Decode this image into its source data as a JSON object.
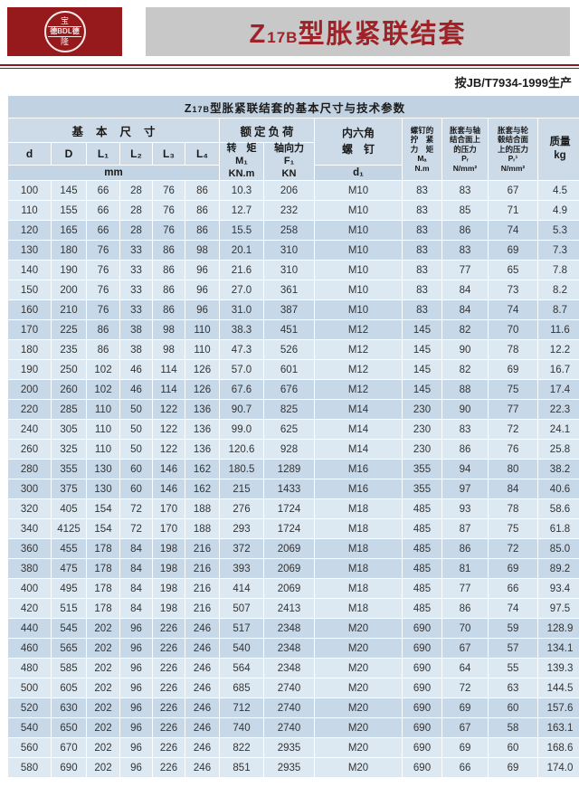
{
  "logo": {
    "line1": "宝",
    "line2": "德BDL德",
    "line3": "隆"
  },
  "banner": {
    "title_prefix": "Z",
    "title_sub": "17B",
    "title_suffix": "型胀紧联结套"
  },
  "standard_note": "按JB/T7934-1999生产",
  "colors": {
    "brand_red": "#96191c",
    "banner_gray": "#c8c8c8",
    "banner_text_red": "#9e2227",
    "table_title_bg": "#c1d2e2",
    "header_bg": "#cddbe9",
    "row_light": "#dde9f2",
    "row_dark": "#c7d8e8"
  },
  "table": {
    "title": {
      "prefix": "Z",
      "sub": "17B",
      "suffix": "型胀紧联结套的基本尺寸与技术参数"
    },
    "headers": {
      "basic_dims": "基本尺寸",
      "rated_load": "额定负荷",
      "hex_screw": "内六角\n螺　钉",
      "d": "d",
      "D": "D",
      "L1": "L₁",
      "L2": "L₂",
      "L3": "L₃",
      "L4": "L₄",
      "mm": "mm",
      "torque": "转　矩\nM₁\nKN.m",
      "axial_force": "轴向力\nF₁\nKN",
      "d1": "d₁",
      "tightening_torque": "螺钉的\n拧　紧\n力　矩\nMₐ\nN.m",
      "shaft_pressure": "胀套与轴\n结合面上\n的压力\nPᵣ\nN/mm²",
      "hub_pressure": "胀套与轮\n毂结合面\n上的压力\nPᵣ¹\nN/mm²",
      "mass": "质量\nkg"
    },
    "rows": [
      [
        "100",
        "145",
        "66",
        "28",
        "76",
        "86",
        "10.3",
        "206",
        "M10",
        "83",
        "83",
        "67",
        "4.5"
      ],
      [
        "110",
        "155",
        "66",
        "28",
        "76",
        "86",
        "12.7",
        "232",
        "M10",
        "83",
        "85",
        "71",
        "4.9"
      ],
      [
        "120",
        "165",
        "66",
        "28",
        "76",
        "86",
        "15.5",
        "258",
        "M10",
        "83",
        "86",
        "74",
        "5.3"
      ],
      [
        "130",
        "180",
        "76",
        "33",
        "86",
        "98",
        "20.1",
        "310",
        "M10",
        "83",
        "83",
        "69",
        "7.3"
      ],
      [
        "140",
        "190",
        "76",
        "33",
        "86",
        "96",
        "21.6",
        "310",
        "M10",
        "83",
        "77",
        "65",
        "7.8"
      ],
      [
        "150",
        "200",
        "76",
        "33",
        "86",
        "96",
        "27.0",
        "361",
        "M10",
        "83",
        "84",
        "73",
        "8.2"
      ],
      [
        "160",
        "210",
        "76",
        "33",
        "86",
        "96",
        "31.0",
        "387",
        "M10",
        "83",
        "84",
        "74",
        "8.7"
      ],
      [
        "170",
        "225",
        "86",
        "38",
        "98",
        "110",
        "38.3",
        "451",
        "M12",
        "145",
        "82",
        "70",
        "11.6"
      ],
      [
        "180",
        "235",
        "86",
        "38",
        "98",
        "110",
        "47.3",
        "526",
        "M12",
        "145",
        "90",
        "78",
        "12.2"
      ],
      [
        "190",
        "250",
        "102",
        "46",
        "114",
        "126",
        "57.0",
        "601",
        "M12",
        "145",
        "82",
        "69",
        "16.7"
      ],
      [
        "200",
        "260",
        "102",
        "46",
        "114",
        "126",
        "67.6",
        "676",
        "M12",
        "145",
        "88",
        "75",
        "17.4"
      ],
      [
        "220",
        "285",
        "110",
        "50",
        "122",
        "136",
        "90.7",
        "825",
        "M14",
        "230",
        "90",
        "77",
        "22.3"
      ],
      [
        "240",
        "305",
        "110",
        "50",
        "122",
        "136",
        "99.0",
        "625",
        "M14",
        "230",
        "83",
        "72",
        "24.1"
      ],
      [
        "260",
        "325",
        "110",
        "50",
        "122",
        "136",
        "120.6",
        "928",
        "M14",
        "230",
        "86",
        "76",
        "25.8"
      ],
      [
        "280",
        "355",
        "130",
        "60",
        "146",
        "162",
        "180.5",
        "1289",
        "M16",
        "355",
        "94",
        "80",
        "38.2"
      ],
      [
        "300",
        "375",
        "130",
        "60",
        "146",
        "162",
        "215",
        "1433",
        "M16",
        "355",
        "97",
        "84",
        "40.6"
      ],
      [
        "320",
        "405",
        "154",
        "72",
        "170",
        "188",
        "276",
        "1724",
        "M18",
        "485",
        "93",
        "78",
        "58.6"
      ],
      [
        "340",
        "4125",
        "154",
        "72",
        "170",
        "188",
        "293",
        "1724",
        "M18",
        "485",
        "87",
        "75",
        "61.8"
      ],
      [
        "360",
        "455",
        "178",
        "84",
        "198",
        "216",
        "372",
        "2069",
        "M18",
        "485",
        "86",
        "72",
        "85.0"
      ],
      [
        "380",
        "475",
        "178",
        "84",
        "198",
        "216",
        "393",
        "2069",
        "M18",
        "485",
        "81",
        "69",
        "89.2"
      ],
      [
        "400",
        "495",
        "178",
        "84",
        "198",
        "216",
        "414",
        "2069",
        "M18",
        "485",
        "77",
        "66",
        "93.4"
      ],
      [
        "420",
        "515",
        "178",
        "84",
        "198",
        "216",
        "507",
        "2413",
        "M18",
        "485",
        "86",
        "74",
        "97.5"
      ],
      [
        "440",
        "545",
        "202",
        "96",
        "226",
        "246",
        "517",
        "2348",
        "M20",
        "690",
        "70",
        "59",
        "128.9"
      ],
      [
        "460",
        "565",
        "202",
        "96",
        "226",
        "246",
        "540",
        "2348",
        "M20",
        "690",
        "67",
        "57",
        "134.1"
      ],
      [
        "480",
        "585",
        "202",
        "96",
        "226",
        "246",
        "564",
        "2348",
        "M20",
        "690",
        "64",
        "55",
        "139.3"
      ],
      [
        "500",
        "605",
        "202",
        "96",
        "226",
        "246",
        "685",
        "2740",
        "M20",
        "690",
        "72",
        "63",
        "144.5"
      ],
      [
        "520",
        "630",
        "202",
        "96",
        "226",
        "246",
        "712",
        "2740",
        "M20",
        "690",
        "69",
        "60",
        "157.6"
      ],
      [
        "540",
        "650",
        "202",
        "96",
        "226",
        "246",
        "740",
        "2740",
        "M20",
        "690",
        "67",
        "58",
        "163.1"
      ],
      [
        "560",
        "670",
        "202",
        "96",
        "226",
        "246",
        "822",
        "2935",
        "M20",
        "690",
        "69",
        "60",
        "168.6"
      ],
      [
        "580",
        "690",
        "202",
        "96",
        "226",
        "246",
        "851",
        "2935",
        "M20",
        "690",
        "66",
        "69",
        "174.0"
      ]
    ]
  }
}
